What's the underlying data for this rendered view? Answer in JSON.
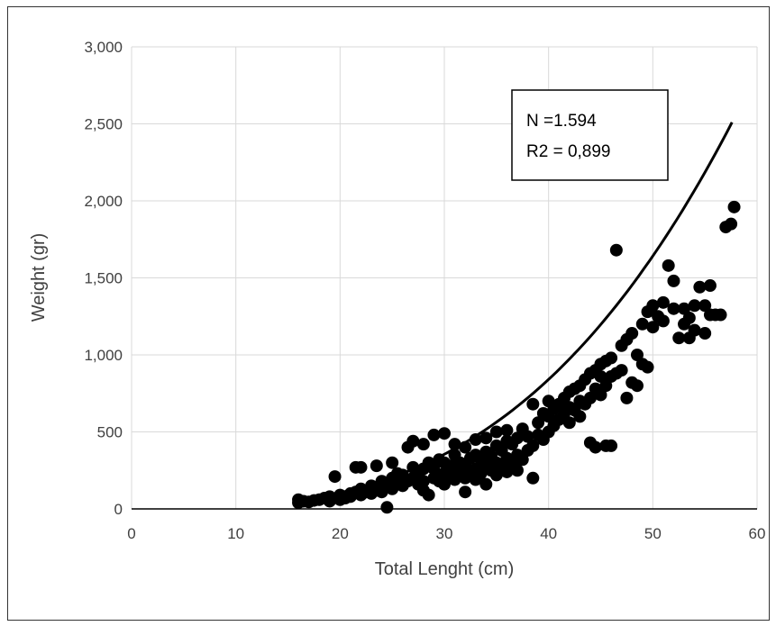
{
  "chart_data": {
    "type": "scatter",
    "title": "",
    "xlabel": "Total Lenght (cm)",
    "ylabel": "Weight (gr)",
    "xlim": [
      0,
      60
    ],
    "ylim": [
      0,
      3000
    ],
    "xticks": [
      "0",
      "10",
      "20",
      "30",
      "40",
      "50",
      "60"
    ],
    "yticks": [
      "0",
      "500",
      "1,000",
      "1,500",
      "2,000",
      "2,500",
      "3,000"
    ],
    "grid": true,
    "legend": "none",
    "marker_color": "#000000",
    "annotation": {
      "line1": "N =1.594",
      "line2": "R2 = 0,899",
      "placement": "top-right"
    },
    "trendline": {
      "type": "power",
      "x_start": 15.5,
      "x_end": 57.6,
      "y_end": 2510
    },
    "series": [
      {
        "points": [
          [
            16,
            40
          ],
          [
            16,
            60
          ],
          [
            16.5,
            50
          ],
          [
            17,
            45
          ],
          [
            17.5,
            55
          ],
          [
            18,
            60
          ],
          [
            18.5,
            70
          ],
          [
            19,
            50
          ],
          [
            19,
            80
          ],
          [
            19.5,
            210
          ],
          [
            20,
            60
          ],
          [
            20,
            90
          ],
          [
            20.5,
            70
          ],
          [
            21,
            80
          ],
          [
            21,
            100
          ],
          [
            21.5,
            110
          ],
          [
            21.5,
            270
          ],
          [
            22,
            90
          ],
          [
            22,
            130
          ],
          [
            22,
            270
          ],
          [
            22.5,
            110
          ],
          [
            23,
            100
          ],
          [
            23,
            150
          ],
          [
            23.5,
            120
          ],
          [
            23.5,
            280
          ],
          [
            24,
            110
          ],
          [
            24,
            150
          ],
          [
            24,
            180
          ],
          [
            24.5,
            140
          ],
          [
            24.5,
            10
          ],
          [
            25,
            130
          ],
          [
            25,
            200
          ],
          [
            25,
            300
          ],
          [
            25.5,
            160
          ],
          [
            25.5,
            230
          ],
          [
            26,
            150
          ],
          [
            26,
            220
          ],
          [
            26.5,
            180
          ],
          [
            26.5,
            400
          ],
          [
            27,
            200
          ],
          [
            27,
            270
          ],
          [
            27,
            440
          ],
          [
            27.5,
            160
          ],
          [
            27.5,
            230
          ],
          [
            28,
            120
          ],
          [
            28,
            180
          ],
          [
            28,
            260
          ],
          [
            28,
            420
          ],
          [
            28.5,
            90
          ],
          [
            28.5,
            300
          ],
          [
            29,
            200
          ],
          [
            29,
            260
          ],
          [
            29,
            480
          ],
          [
            29.5,
            180
          ],
          [
            29.5,
            320
          ],
          [
            30,
            160
          ],
          [
            30,
            230
          ],
          [
            30,
            300
          ],
          [
            30,
            490
          ],
          [
            30.5,
            200
          ],
          [
            30.5,
            280
          ],
          [
            31,
            190
          ],
          [
            31,
            250
          ],
          [
            31,
            350
          ],
          [
            31,
            420
          ],
          [
            31.5,
            230
          ],
          [
            31.5,
            300
          ],
          [
            32,
            110
          ],
          [
            32,
            200
          ],
          [
            32,
            280
          ],
          [
            32,
            400
          ],
          [
            32.5,
            240
          ],
          [
            32.5,
            330
          ],
          [
            33,
            190
          ],
          [
            33,
            260
          ],
          [
            33,
            350
          ],
          [
            33,
            450
          ],
          [
            33.5,
            230
          ],
          [
            33.5,
            320
          ],
          [
            34,
            160
          ],
          [
            34,
            280
          ],
          [
            34,
            370
          ],
          [
            34,
            460
          ],
          [
            34.5,
            250
          ],
          [
            34.5,
            340
          ],
          [
            35,
            220
          ],
          [
            35,
            300
          ],
          [
            35,
            410
          ],
          [
            35,
            500
          ],
          [
            35.5,
            280
          ],
          [
            35.5,
            380
          ],
          [
            36,
            240
          ],
          [
            36,
            330
          ],
          [
            36,
            440
          ],
          [
            36,
            510
          ],
          [
            36.5,
            300
          ],
          [
            36.5,
            420
          ],
          [
            37,
            250
          ],
          [
            37,
            350
          ],
          [
            37,
            460
          ],
          [
            37.5,
            320
          ],
          [
            37.5,
            520
          ],
          [
            38,
            380
          ],
          [
            38,
            470
          ],
          [
            38.5,
            200
          ],
          [
            38.5,
            410
          ],
          [
            38.5,
            680
          ],
          [
            39,
            480
          ],
          [
            39,
            560
          ],
          [
            39.5,
            450
          ],
          [
            39.5,
            620
          ],
          [
            40,
            500
          ],
          [
            40,
            600
          ],
          [
            40,
            700
          ],
          [
            40.5,
            540
          ],
          [
            40.5,
            650
          ],
          [
            41,
            580
          ],
          [
            41,
            680
          ],
          [
            41.5,
            620
          ],
          [
            41.5,
            720
          ],
          [
            42,
            560
          ],
          [
            42,
            660
          ],
          [
            42,
            760
          ],
          [
            42.5,
            640
          ],
          [
            42.5,
            780
          ],
          [
            43,
            600
          ],
          [
            43,
            700
          ],
          [
            43,
            800
          ],
          [
            43.5,
            680
          ],
          [
            43.5,
            840
          ],
          [
            44,
            430
          ],
          [
            44,
            720
          ],
          [
            44,
            880
          ],
          [
            44.5,
            400
          ],
          [
            44.5,
            780
          ],
          [
            44.5,
            900
          ],
          [
            45,
            740
          ],
          [
            45,
            860
          ],
          [
            45,
            940
          ],
          [
            45.5,
            410
          ],
          [
            45.5,
            800
          ],
          [
            45.5,
            960
          ],
          [
            46,
            410
          ],
          [
            46,
            860
          ],
          [
            46,
            980
          ],
          [
            46.5,
            880
          ],
          [
            46.5,
            1680
          ],
          [
            47,
            900
          ],
          [
            47,
            1060
          ],
          [
            47.5,
            720
          ],
          [
            47.5,
            1100
          ],
          [
            48,
            820
          ],
          [
            48,
            1140
          ],
          [
            48.5,
            800
          ],
          [
            48.5,
            1000
          ],
          [
            49,
            940
          ],
          [
            49,
            1200
          ],
          [
            49.5,
            920
          ],
          [
            49.5,
            1280
          ],
          [
            50,
            1180
          ],
          [
            50,
            1320
          ],
          [
            50.5,
            1250
          ],
          [
            51,
            1220
          ],
          [
            51,
            1340
          ],
          [
            51.5,
            1580
          ],
          [
            52,
            1300
          ],
          [
            52,
            1480
          ],
          [
            52.5,
            1110
          ],
          [
            53,
            1200
          ],
          [
            53,
            1300
          ],
          [
            53.5,
            1110
          ],
          [
            53.5,
            1240
          ],
          [
            54,
            1160
          ],
          [
            54,
            1320
          ],
          [
            54.5,
            1440
          ],
          [
            55,
            1140
          ],
          [
            55,
            1320
          ],
          [
            55.5,
            1260
          ],
          [
            55.5,
            1450
          ],
          [
            56,
            1260
          ],
          [
            56.5,
            1260
          ],
          [
            57,
            1830
          ],
          [
            57.5,
            1850
          ],
          [
            57.8,
            1960
          ]
        ]
      }
    ]
  }
}
